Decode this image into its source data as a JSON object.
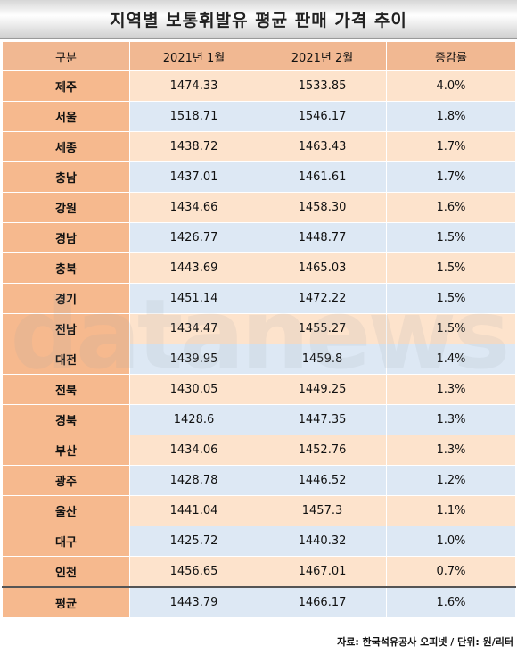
{
  "title": "지역별 보통휘발유 평균 판매 가격 추이",
  "headers": [
    "구분",
    "2021년 1월",
    "2021년 2월",
    "증감률"
  ],
  "rows": [
    {
      "region": "제주",
      "jan": "1474.33",
      "feb": "1533.85",
      "rate": "4.0%"
    },
    {
      "region": "서울",
      "jan": "1518.71",
      "feb": "1546.17",
      "rate": "1.8%"
    },
    {
      "region": "세종",
      "jan": "1438.72",
      "feb": "1463.43",
      "rate": "1.7%"
    },
    {
      "region": "충남",
      "jan": "1437.01",
      "feb": "1461.61",
      "rate": "1.7%"
    },
    {
      "region": "강원",
      "jan": "1434.66",
      "feb": "1458.30",
      "rate": "1.6%"
    },
    {
      "region": "경남",
      "jan": "1426.77",
      "feb": "1448.77",
      "rate": "1.5%"
    },
    {
      "region": "충북",
      "jan": "1443.69",
      "feb": "1465.03",
      "rate": "1.5%"
    },
    {
      "region": "경기",
      "jan": "1451.14",
      "feb": "1472.22",
      "rate": "1.5%"
    },
    {
      "region": "전남",
      "jan": "1434.47",
      "feb": "1455.27",
      "rate": "1.5%"
    },
    {
      "region": "대전",
      "jan": "1439.95",
      "feb": "1459.8",
      "rate": "1.4%"
    },
    {
      "region": "전북",
      "jan": "1430.05",
      "feb": "1449.25",
      "rate": "1.3%"
    },
    {
      "region": "경북",
      "jan": "1428.6",
      "feb": "1447.35",
      "rate": "1.3%"
    },
    {
      "region": "부산",
      "jan": "1434.06",
      "feb": "1452.76",
      "rate": "1.3%"
    },
    {
      "region": "광주",
      "jan": "1428.78",
      "feb": "1446.52",
      "rate": "1.2%"
    },
    {
      "region": "울산",
      "jan": "1441.04",
      "feb": "1457.3",
      "rate": "1.1%"
    },
    {
      "region": "대구",
      "jan": "1425.72",
      "feb": "1440.32",
      "rate": "1.0%"
    },
    {
      "region": "인천",
      "jan": "1456.65",
      "feb": "1467.01",
      "rate": "0.7%"
    }
  ],
  "average": {
    "region": "평균",
    "jan": "1443.79",
    "feb": "1466.17",
    "rate": "1.6%"
  },
  "watermark": "datanews",
  "source": "자료: 한국석유공사 오피넷 / 단위: 원/리터"
}
